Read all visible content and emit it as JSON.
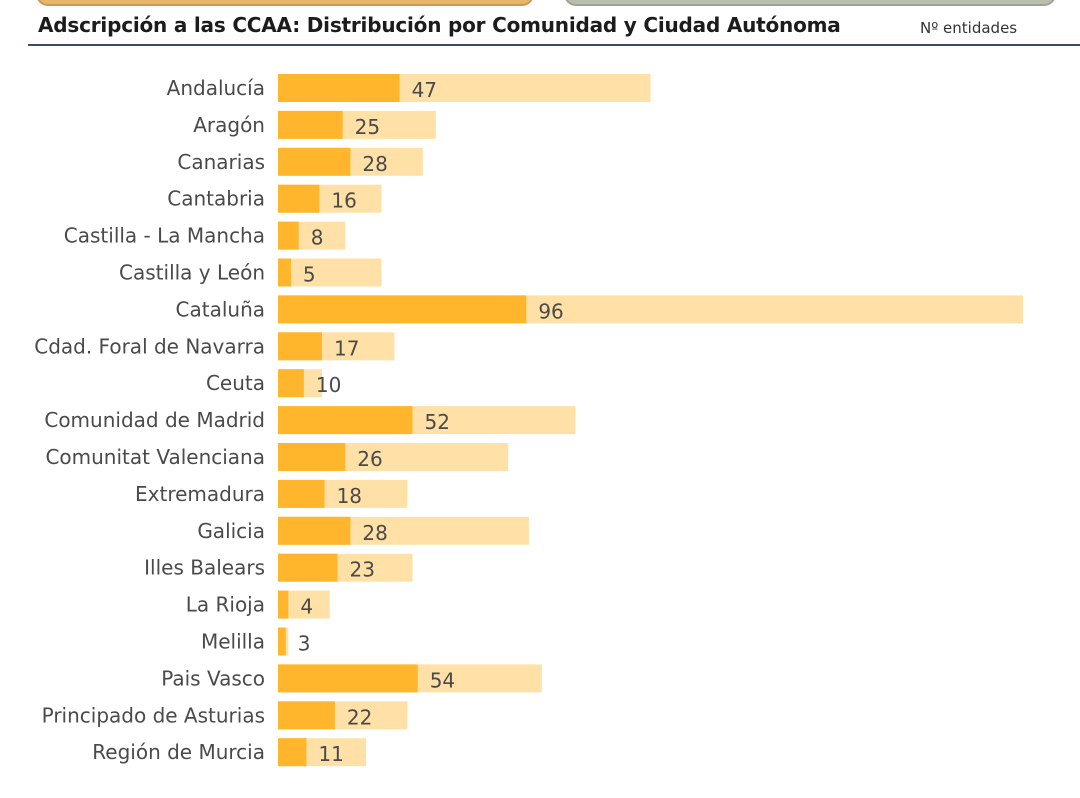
{
  "header": {
    "title": "Adscripción a las CCAA: Distribución por Comunidad y Ciudad Autónoma",
    "unit_label": "Nº entidades"
  },
  "colors": {
    "bar_primary": "#ffb62c",
    "bar_secondary": "#ffe1a7",
    "header_rule": "#3a4a6a"
  },
  "chart_data": {
    "type": "bar",
    "orientation": "horizontal",
    "title": "Adscripción a las CCAA: Distribución por Comunidad y Ciudad Autónoma",
    "categories": [
      "Andalucía",
      "Aragón",
      "Canarias",
      "Cantabria",
      "Castilla - La Mancha",
      "Castilla y León",
      "Cataluña",
      "Cdad. Foral de Navarra",
      "Ceuta",
      "Comunidad de Madrid",
      "Comunitat Valenciana",
      "Extremadura",
      "Galicia",
      "Illes Balears",
      "La Rioja",
      "Melilla",
      "Pais Vasco",
      "Principado de Asturias",
      "Región de Murcia"
    ],
    "series": [
      {
        "values": [
          47,
          25,
          28,
          16,
          8,
          5,
          96,
          17,
          10,
          52,
          26,
          18,
          28,
          23,
          4,
          3,
          54,
          22,
          11
        ]
      },
      {
        "values": [
          144,
          61,
          56,
          40,
          26,
          40,
          288,
          45,
          17,
          115,
          89,
          50,
          97,
          52,
          20,
          4,
          102,
          50,
          34
        ]
      }
    ],
    "xlabel": "",
    "ylabel": "",
    "xlim": [
      0,
      288
    ],
    "grid": false,
    "legend": "none",
    "data_labels": "series-1"
  }
}
